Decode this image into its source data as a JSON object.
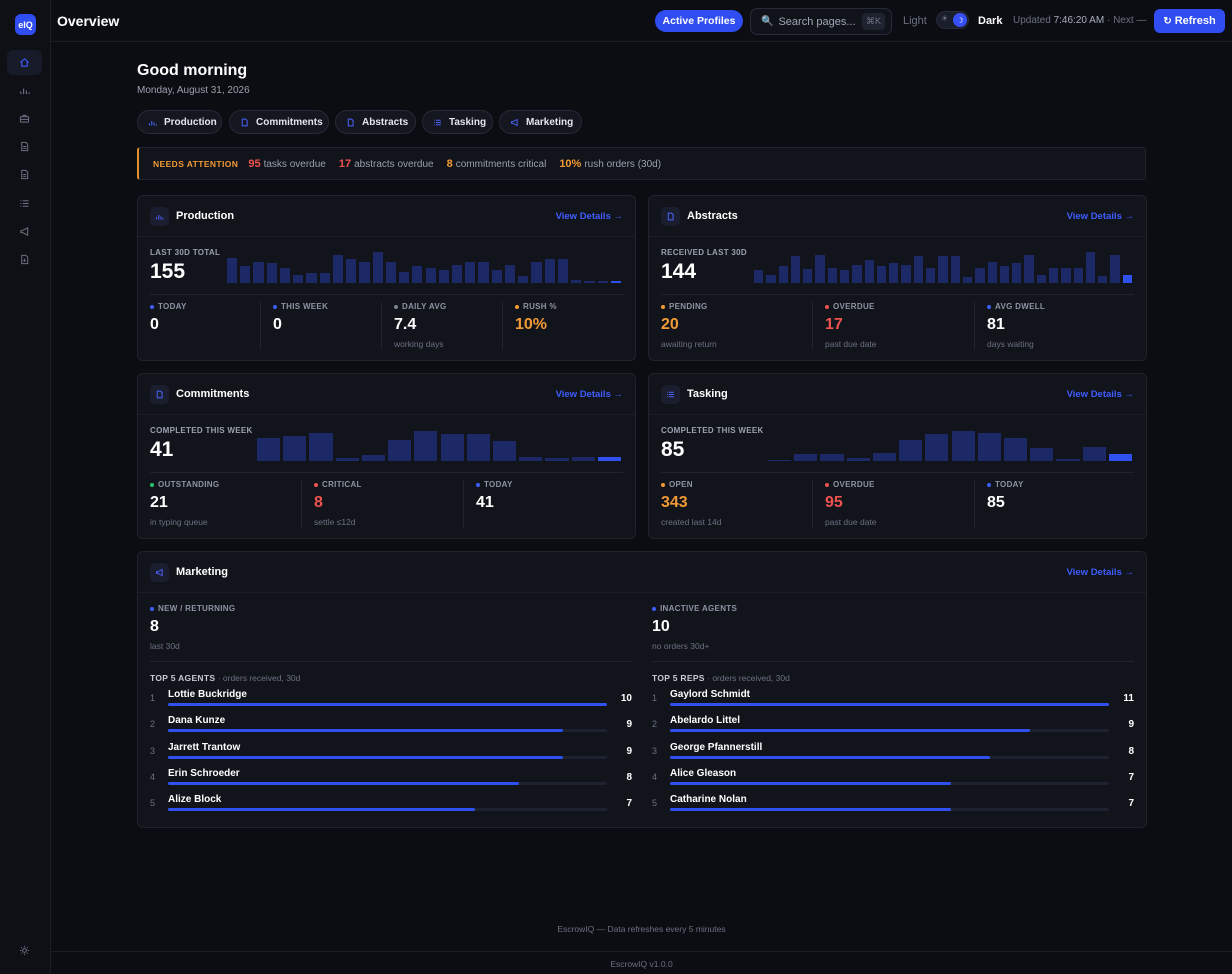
{
  "app": {
    "logo": "eIQ",
    "page_title": "Overview"
  },
  "header": {
    "active_profiles": "Active Profiles",
    "search_placeholder": "Search pages...",
    "search_shortcut": "⌘K",
    "theme_light": "Light",
    "theme_dark": "Dark",
    "theme_current": "Dark",
    "updated_label": "Updated",
    "updated_time": "7:46:20 AM",
    "next_label": "· Next —",
    "refresh": "Refresh"
  },
  "greeting": {
    "title": "Good morning",
    "date": "Monday, August 31, 2026"
  },
  "quick_links": [
    {
      "label": "Production",
      "icon": "bar-chart-icon"
    },
    {
      "label": "Commitments",
      "icon": "document-icon"
    },
    {
      "label": "Abstracts",
      "icon": "document-icon"
    },
    {
      "label": "Tasking",
      "icon": "list-icon"
    },
    {
      "label": "Marketing",
      "icon": "megaphone-icon"
    }
  ],
  "attention": {
    "label": "NEEDS ATTENTION",
    "items": [
      {
        "value": "95",
        "text": "tasks overdue",
        "color": "#ef5350"
      },
      {
        "value": "17",
        "text": "abstracts overdue",
        "color": "#ef5350"
      },
      {
        "value": "8",
        "text": "commitments critical",
        "color": "#f29a35"
      },
      {
        "value": "10%",
        "text": "rush orders (30d)",
        "color": "#f29a35"
      }
    ]
  },
  "cards": {
    "production": {
      "title": "Production",
      "link": "View Details →",
      "big_label": "LAST 30D TOTAL",
      "big_value": "155",
      "spark": [
        0.9,
        0.6,
        0.75,
        0.7,
        0.55,
        0.3,
        0.35,
        0.35,
        1.0,
        0.85,
        0.75,
        1.1,
        0.75,
        0.4,
        0.6,
        0.55,
        0.45,
        0.65,
        0.75,
        0.75,
        0.45,
        0.65,
        0.25,
        0.75,
        0.85,
        0.85,
        0.1,
        0.08,
        0.08,
        0.06
      ],
      "kpis": [
        {
          "label": "TODAY",
          "value": "0",
          "sub": "",
          "dot": "#3f5dff",
          "color": "#ffffff"
        },
        {
          "label": "THIS WEEK",
          "value": "0",
          "sub": "",
          "dot": "#3f5dff",
          "color": "#ffffff"
        },
        {
          "label": "DAILY AVG",
          "value": "7.4",
          "sub": "working days",
          "dot": "#7b8090",
          "color": "#ffffff"
        },
        {
          "label": "RUSH %",
          "value": "10%",
          "sub": "",
          "dot": "#f29a35",
          "color": "#f29a35"
        }
      ]
    },
    "abstracts": {
      "title": "Abstracts",
      "link": "View Details →",
      "big_label": "RECEIVED LAST 30D",
      "big_value": "144",
      "spark": [
        0.45,
        0.3,
        0.6,
        0.95,
        0.5,
        1.0,
        0.55,
        0.45,
        0.65,
        0.8,
        0.6,
        0.7,
        0.65,
        0.95,
        0.55,
        0.95,
        0.95,
        0.2,
        0.55,
        0.75,
        0.6,
        0.7,
        1.0,
        0.3,
        0.55,
        0.55,
        0.55,
        1.1,
        0.25,
        1.0,
        0.3
      ],
      "kpis": [
        {
          "label": "PENDING",
          "value": "20",
          "sub": "awaiting return",
          "dot": "#f29a35",
          "color": "#f29a35"
        },
        {
          "label": "OVERDUE",
          "value": "17",
          "sub": "past due date",
          "dot": "#ef5350",
          "color": "#ef5350"
        },
        {
          "label": "AVG DWELL",
          "value": "81",
          "sub": "days waiting",
          "dot": "#3f5dff",
          "color": "#ffffff"
        }
      ]
    },
    "commitments": {
      "title": "Commitments",
      "link": "View Details →",
      "big_label": "COMPLETED THIS WEEK",
      "big_value": "41",
      "spark": [
        0.8,
        0.9,
        1.0,
        0.12,
        0.2,
        0.75,
        1.05,
        0.95,
        0.95,
        0.7,
        0.15,
        0.1,
        0.15,
        0.15
      ],
      "kpis": [
        {
          "label": "OUTSTANDING",
          "value": "21",
          "sub": "in typing queue",
          "dot": "#27c26c",
          "color": "#ffffff"
        },
        {
          "label": "CRITICAL",
          "value": "8",
          "sub": "settle ≤12d",
          "dot": "#ef5350",
          "color": "#ef5350"
        },
        {
          "label": "TODAY",
          "value": "41",
          "sub": "",
          "dot": "#3f5dff",
          "color": "#ffffff"
        }
      ]
    },
    "tasking": {
      "title": "Tasking",
      "link": "View Details →",
      "big_label": "COMPLETED THIS WEEK",
      "big_value": "85",
      "spark": [
        0.03,
        0.25,
        0.25,
        0.1,
        0.3,
        0.75,
        0.95,
        1.05,
        1.0,
        0.8,
        0.45,
        0.08,
        0.5,
        0.25
      ],
      "kpis": [
        {
          "label": "OPEN",
          "value": "343",
          "sub": "created last 14d",
          "dot": "#f29a35",
          "color": "#f29a35"
        },
        {
          "label": "OVERDUE",
          "value": "95",
          "sub": "past due date",
          "dot": "#ef5350",
          "color": "#ef5350"
        },
        {
          "label": "TODAY",
          "value": "85",
          "sub": "",
          "dot": "#3f5dff",
          "color": "#ffffff"
        }
      ]
    },
    "marketing": {
      "title": "Marketing",
      "link": "View Details →",
      "left_kpi": {
        "label": "NEW / RETURNING",
        "value": "8",
        "sub": "last 30d"
      },
      "right_kpi": {
        "label": "INACTIVE AGENTS",
        "value": "10",
        "sub": "no orders 30d+"
      },
      "agents_title": "TOP 5 AGENTS",
      "agents_sub": "· orders received, 30d",
      "reps_title": "TOP 5 REPS",
      "reps_sub": "· orders received, 30d",
      "agents": [
        {
          "rank": "1",
          "name": "Lottie Buckridge",
          "value": "10",
          "share": 1.0
        },
        {
          "rank": "2",
          "name": "Dana Kunze",
          "value": "9",
          "share": 0.9
        },
        {
          "rank": "3",
          "name": "Jarrett Trantow",
          "value": "9",
          "share": 0.9
        },
        {
          "rank": "4",
          "name": "Erin Schroeder",
          "value": "8",
          "share": 0.8
        },
        {
          "rank": "5",
          "name": "Alize Block",
          "value": "7",
          "share": 0.7
        }
      ],
      "reps": [
        {
          "rank": "1",
          "name": "Gaylord Schmidt",
          "value": "11",
          "share": 1.0
        },
        {
          "rank": "2",
          "name": "Abelardo Littel",
          "value": "9",
          "share": 0.82
        },
        {
          "rank": "3",
          "name": "George Pfannerstill",
          "value": "8",
          "share": 0.73
        },
        {
          "rank": "4",
          "name": "Alice Gleason",
          "value": "7",
          "share": 0.64
        },
        {
          "rank": "5",
          "name": "Catharine Nolan",
          "value": "7",
          "share": 0.64
        }
      ]
    }
  },
  "footer": {
    "note": "EscrowIQ — Data refreshes every 5 minutes",
    "version": "EscrowIQ v1.0.0"
  }
}
